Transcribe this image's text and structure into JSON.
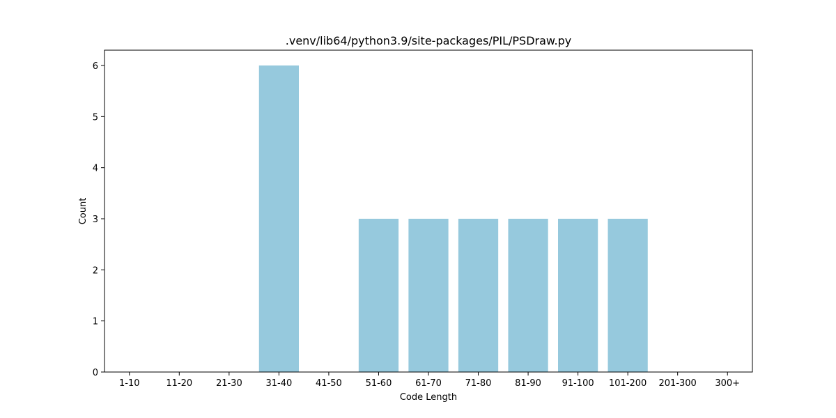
{
  "chart_data": {
    "type": "bar",
    "title": ".venv/lib64/python3.9/site-packages/PIL/PSDraw.py",
    "xlabel": "Code Length",
    "ylabel": "Count",
    "categories": [
      "1-10",
      "11-20",
      "21-30",
      "31-40",
      "41-50",
      "51-60",
      "61-70",
      "71-80",
      "81-90",
      "91-100",
      "101-200",
      "201-300",
      "300+"
    ],
    "values": [
      0,
      0,
      0,
      6,
      0,
      3,
      3,
      3,
      3,
      3,
      3,
      0,
      0
    ],
    "ylim": [
      0,
      6.3
    ],
    "yticks": [
      0,
      1,
      2,
      3,
      4,
      5,
      6
    ],
    "grid": false,
    "bar_color": "#96c9dd"
  }
}
